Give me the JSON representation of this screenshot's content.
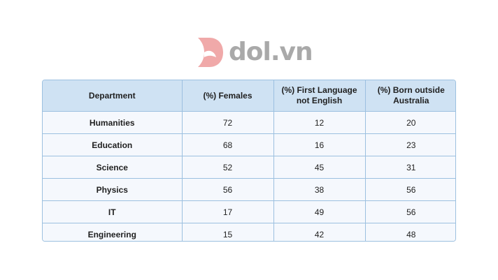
{
  "brand": {
    "name": "dol.vn",
    "logo_color": "#f0a9a9",
    "text_color": "#a9a9a9"
  },
  "table": {
    "headers": [
      "Department",
      "(%) Females",
      "(%) First Language not English",
      "(%) Born outside Australia"
    ],
    "rows": [
      [
        "Humanities",
        "72",
        "12",
        "20"
      ],
      [
        "Education",
        "68",
        "16",
        "23"
      ],
      [
        "Science",
        "52",
        "45",
        "31"
      ],
      [
        "Physics",
        "56",
        "38",
        "56"
      ],
      [
        "IT",
        "17",
        "49",
        "56"
      ],
      [
        "Engineering",
        "15",
        "42",
        "48"
      ]
    ]
  },
  "chart_data": {
    "type": "table",
    "columns": [
      "Department",
      "(%) Females",
      "(%) First Language not English",
      "(%) Born outside Australia"
    ],
    "categories": [
      "Humanities",
      "Education",
      "Science",
      "Physics",
      "IT",
      "Engineering"
    ],
    "series": [
      {
        "name": "(%) Females",
        "values": [
          72,
          68,
          52,
          56,
          17,
          15
        ]
      },
      {
        "name": "(%) First Language not English",
        "values": [
          12,
          16,
          45,
          38,
          49,
          42
        ]
      },
      {
        "name": "(%) Born outside Australia",
        "values": [
          20,
          23,
          31,
          56,
          56,
          48
        ]
      }
    ]
  }
}
